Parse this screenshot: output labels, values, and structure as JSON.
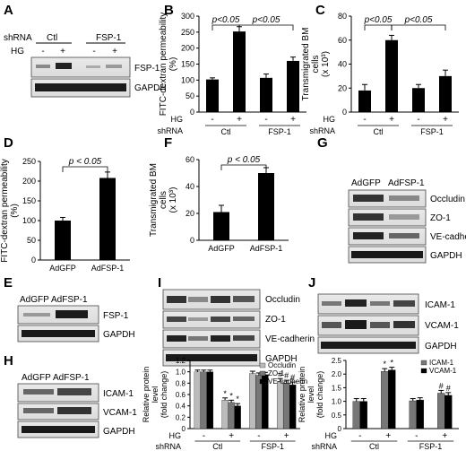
{
  "panel_letters": {
    "A": "A",
    "B": "B",
    "C": "C",
    "D": "D",
    "E": "E",
    "F": "F",
    "G": "G",
    "H": "H",
    "I": "I",
    "J": "J"
  },
  "common": {
    "hg": "HG",
    "shrna": "shRNA",
    "ctl": "Ctl",
    "fsp1": "FSP-1",
    "minus": "-",
    "plus": "+",
    "adgfp": "AdGFP",
    "adfsp1": "AdFSP-1",
    "p005": "p<0.05",
    "p_lt_005": "p < 0.05",
    "star": "*",
    "hash": "#"
  },
  "blot_labels": {
    "fsp1": "FSP-1",
    "gapdh": "GAPDH",
    "occludin": "Occludin",
    "zo1": "ZO-1",
    "vecad": "VE-cadherin",
    "icam1": "ICAM-1",
    "vcam1": "VCAM-1"
  },
  "colors": {
    "bar_black": "#000000",
    "bar_zo1": "#777777",
    "bar_occludin": "#bbbbbb"
  },
  "chart_data": [
    {
      "panel": "B",
      "type": "bar",
      "ylabel": "FITC-dextran permeability (%)",
      "ylim": [
        0,
        300
      ],
      "yticks": [
        "0",
        "50",
        "100",
        "150",
        "200",
        "250",
        "300"
      ],
      "groups": [
        "Ctl",
        "FSP-1"
      ],
      "hg": [
        "-",
        "+",
        "-",
        "+"
      ],
      "values": [
        102,
        252,
        107,
        160
      ],
      "errors": [
        5,
        15,
        12,
        12
      ],
      "annotations": [
        "p<0.05",
        "p<0.05"
      ]
    },
    {
      "panel": "C",
      "type": "bar",
      "ylabel": "Transmigrated BM cells (x 10³)",
      "ylim": [
        0,
        80
      ],
      "yticks": [
        "0",
        "20",
        "40",
        "60",
        "80"
      ],
      "groups": [
        "Ctl",
        "FSP-1"
      ],
      "hg": [
        "-",
        "+",
        "-",
        "+"
      ],
      "values": [
        18,
        60,
        20,
        30
      ],
      "errors": [
        5,
        4,
        3,
        5
      ],
      "annotations": [
        "p<0.05",
        "p<0.05"
      ]
    },
    {
      "panel": "D",
      "type": "bar",
      "ylabel": "FITC-dextran permeability (%)",
      "ylim": [
        0,
        250
      ],
      "yticks": [
        "0",
        "50",
        "100",
        "150",
        "200",
        "250"
      ],
      "categories": [
        "AdGFP",
        "AdFSP-1"
      ],
      "values": [
        100,
        208
      ],
      "errors": [
        8,
        15
      ],
      "annotations": [
        "p < 0.05"
      ]
    },
    {
      "panel": "F",
      "type": "bar",
      "ylabel": "Transmigrated BM cells (x 10³)",
      "ylim": [
        0,
        60
      ],
      "yticks": [
        "0",
        "20",
        "40",
        "60"
      ],
      "categories": [
        "AdGFP",
        "AdFSP-1"
      ],
      "values": [
        21,
        50
      ],
      "errors": [
        5,
        4
      ],
      "annotations": [
        "p < 0.05"
      ]
    },
    {
      "panel": "I",
      "type": "bar",
      "ylabel": "Relative protein level (fold change)",
      "ylim": [
        0,
        1.2
      ],
      "yticks": [
        "0",
        "0.2",
        "0.4",
        "0.6",
        "0.8",
        "1.0",
        "1.2"
      ],
      "legend": [
        "Occludin",
        "ZO-1",
        "VE-cadherin"
      ],
      "groups": [
        "Ctl",
        "FSP-1"
      ],
      "hg": [
        "-",
        "+",
        "-",
        "+"
      ],
      "series": [
        {
          "name": "Occludin",
          "values": [
            1.0,
            0.5,
            0.97,
            0.83
          ],
          "errors": [
            0.03,
            0.04,
            0.04,
            0.05
          ]
        },
        {
          "name": "ZO-1",
          "values": [
            1.0,
            0.46,
            0.94,
            0.8
          ],
          "errors": [
            0.03,
            0.04,
            0.04,
            0.05
          ]
        },
        {
          "name": "VE-cadherin",
          "values": [
            1.0,
            0.4,
            0.95,
            0.77
          ],
          "errors": [
            0.03,
            0.04,
            0.04,
            0.05
          ]
        }
      ]
    },
    {
      "panel": "J",
      "type": "bar",
      "ylabel": "Relative protein level (fold change)",
      "ylim": [
        0,
        2.5
      ],
      "yticks": [
        "0",
        "0.5",
        "1.0",
        "1.5",
        "2.0",
        "2.5"
      ],
      "legend": [
        "ICAM-1",
        "VCAM-1"
      ],
      "groups": [
        "Ctl",
        "FSP-1"
      ],
      "hg": [
        "-",
        "+",
        "-",
        "+"
      ],
      "series": [
        {
          "name": "ICAM-1",
          "values": [
            1.0,
            2.1,
            1.02,
            1.3
          ],
          "errors": [
            0.1,
            0.1,
            0.08,
            0.1
          ]
        },
        {
          "name": "VCAM-1",
          "values": [
            1.0,
            2.15,
            1.05,
            1.22
          ],
          "errors": [
            0.1,
            0.1,
            0.08,
            0.1
          ]
        }
      ]
    }
  ]
}
